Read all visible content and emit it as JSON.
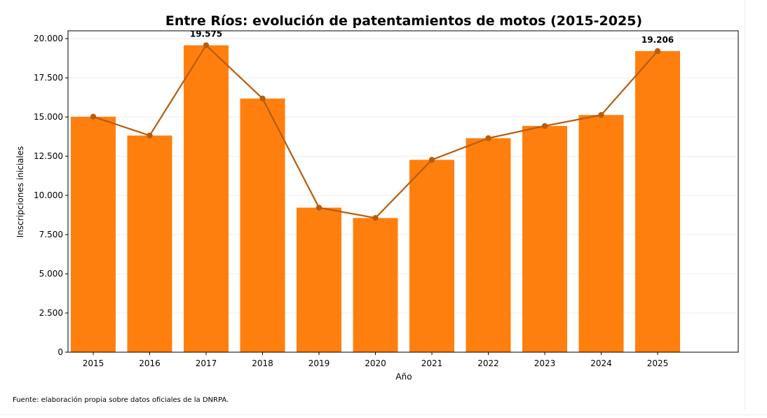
{
  "chart_data": {
    "type": "bar",
    "title": "Entre Ríos: evolución de patentamientos de motos (2015-2025)",
    "xlabel": "Año",
    "ylabel": "Inscripciones iniciales",
    "categories": [
      "2015",
      "2016",
      "2017",
      "2018",
      "2019",
      "2020",
      "2021",
      "2022",
      "2023",
      "2024",
      "2025"
    ],
    "values": [
      15020,
      13820,
      19575,
      16180,
      9220,
      8560,
      12270,
      13650,
      14430,
      15130,
      19206
    ],
    "ylim": [
      0,
      20500
    ],
    "yticks": [
      0,
      2500,
      5000,
      7500,
      10000,
      12500,
      15000,
      17500,
      20000
    ],
    "ytick_labels": [
      "0",
      "2.500",
      "5.000",
      "7.500",
      "10.000",
      "12.500",
      "15.000",
      "17.500",
      "20.000"
    ],
    "overlay_line": true,
    "annotations": [
      {
        "category": "2017",
        "label": "19.575"
      },
      {
        "category": "2025",
        "label": "19.206"
      }
    ],
    "grid": "horizontal",
    "colors": {
      "bar": "#ff7f0e",
      "line": "#b85c0d",
      "axis": "#000000",
      "grid": "#ececec"
    }
  },
  "footer": {
    "source": "Fuente: elaboración propia sobre datos oficiales de la DNRPA."
  }
}
